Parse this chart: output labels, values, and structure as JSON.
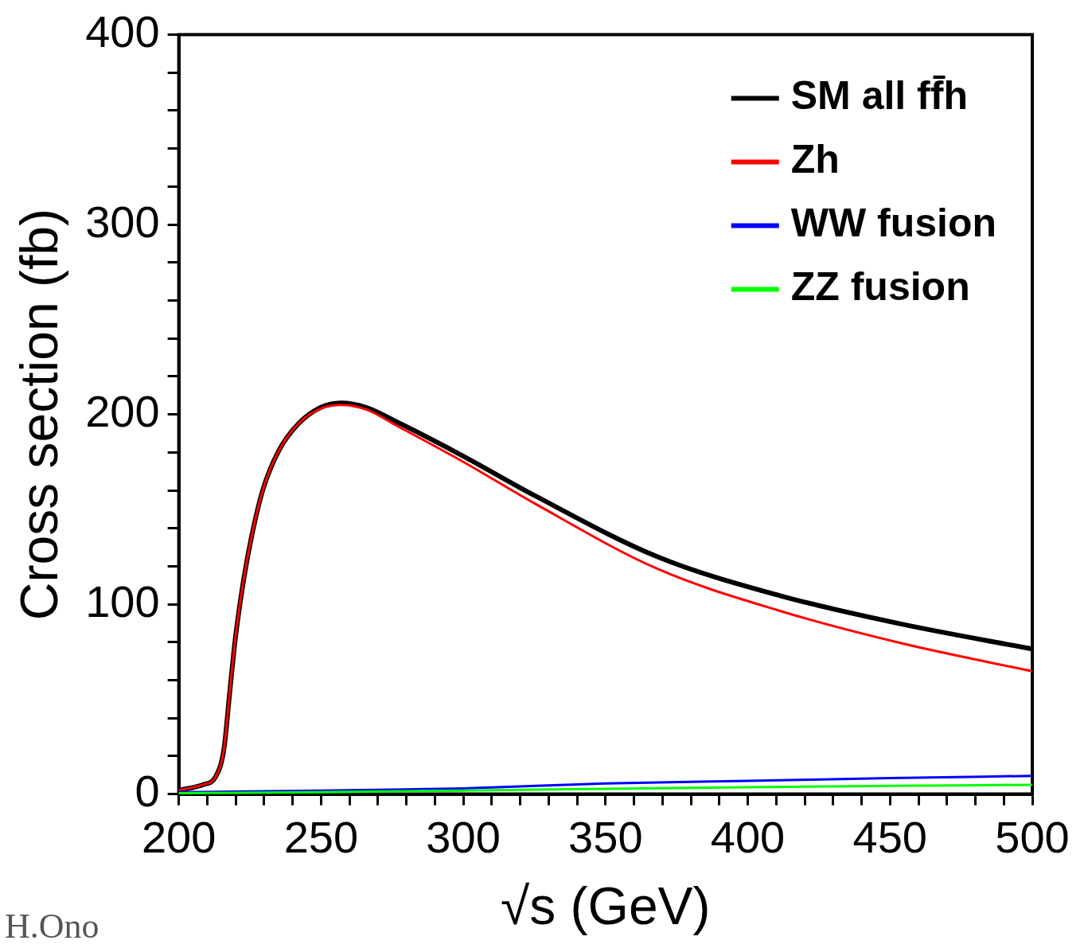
{
  "chart_data": {
    "type": "line",
    "xlabel": "√s (GeV)",
    "ylabel": "Cross section (fb)",
    "annotations": [
      "H.Ono"
    ],
    "legend": "top right",
    "xlim": [
      200,
      500
    ],
    "ylim": [
      0,
      400
    ],
    "xticks": [
      200,
      {
        "value": 210,
        "label": null
      },
      {
        "value": 220,
        "label": null
      },
      {
        "value": 230,
        "label": null
      },
      {
        "value": 240,
        "label": null
      },
      250,
      {
        "value": 260,
        "label": null
      },
      {
        "value": 270,
        "label": null
      },
      {
        "value": 280,
        "label": null
      },
      {
        "value": 290,
        "label": null
      },
      300,
      {
        "value": 310,
        "label": null
      },
      {
        "value": 320,
        "label": null
      },
      {
        "value": 330,
        "label": null
      },
      {
        "value": 340,
        "label": null
      },
      350,
      {
        "value": 360,
        "label": null
      },
      {
        "value": 370,
        "label": null
      },
      {
        "value": 380,
        "label": null
      },
      {
        "value": 390,
        "label": null
      },
      400,
      {
        "value": 410,
        "label": null
      },
      {
        "value": 420,
        "label": null
      },
      {
        "value": 430,
        "label": null
      },
      {
        "value": 440,
        "label": null
      },
      450,
      {
        "value": 460,
        "label": null
      },
      {
        "value": 470,
        "label": null
      },
      {
        "value": 480,
        "label": null
      },
      {
        "value": 490,
        "label": null
      },
      500
    ],
    "yticks": [
      0,
      {
        "value": 20,
        "label": null
      },
      {
        "value": 40,
        "label": null
      },
      {
        "value": 60,
        "label": null
      },
      {
        "value": 80,
        "label": null
      },
      100,
      {
        "value": 120,
        "label": null
      },
      {
        "value": 140,
        "label": null
      },
      {
        "value": 160,
        "label": null
      },
      {
        "value": 180,
        "label": null
      },
      200,
      {
        "value": 220,
        "label": null
      },
      {
        "value": 240,
        "label": null
      },
      {
        "value": 260,
        "label": null
      },
      {
        "value": 280,
        "label": null
      },
      300,
      {
        "value": 320,
        "label": null
      },
      {
        "value": 340,
        "label": null
      },
      {
        "value": 360,
        "label": null
      },
      {
        "value": 380,
        "label": null
      },
      400
    ],
    "series": [
      {
        "name": "SM all ff̄h",
        "color": "#000000",
        "x": [
          200,
          208.6,
          212.9,
          215.9,
          217.8,
          219.8,
          222.7,
          225.5,
          229.5,
          235.2,
          242,
          249.8,
          257,
          266,
          276.7,
          300,
          325.4,
          368.3,
          411.3,
          454.2,
          500
        ],
        "values": [
          2,
          5,
          9,
          24,
          52,
          81,
          112,
          135,
          160,
          181,
          195,
          203.6,
          206,
          203.6,
          196,
          178,
          157,
          125,
          104.5,
          89.5,
          76.4
        ]
      },
      {
        "name": "Zh",
        "color": "#ff0000",
        "x": [
          200,
          208.6,
          212.9,
          215.9,
          217.8,
          219.8,
          222.7,
          225.5,
          229.5,
          235.2,
          242,
          249.8,
          257,
          266,
          276.7,
          300,
          325.4,
          368.3,
          411.3,
          454.2,
          500
        ],
        "values": [
          2,
          5,
          9,
          24,
          52,
          81,
          112,
          135,
          160,
          181,
          195,
          203,
          205,
          202.5,
          194,
          175,
          152.8,
          118.6,
          96.5,
          79.4,
          64.7
        ]
      },
      {
        "name": "WW fusion",
        "color": "#0000ff",
        "x": [
          200,
          250,
          300,
          350,
          400,
          450,
          500
        ],
        "values": [
          1,
          1.8,
          3,
          5.6,
          7,
          8.4,
          9.6
        ]
      },
      {
        "name": "ZZ fusion",
        "color": "#00ff00",
        "x": [
          200,
          250,
          300,
          350,
          400,
          450,
          500
        ],
        "values": [
          0.5,
          1,
          1.8,
          2.8,
          3.6,
          4.3,
          4.9
        ]
      }
    ]
  }
}
